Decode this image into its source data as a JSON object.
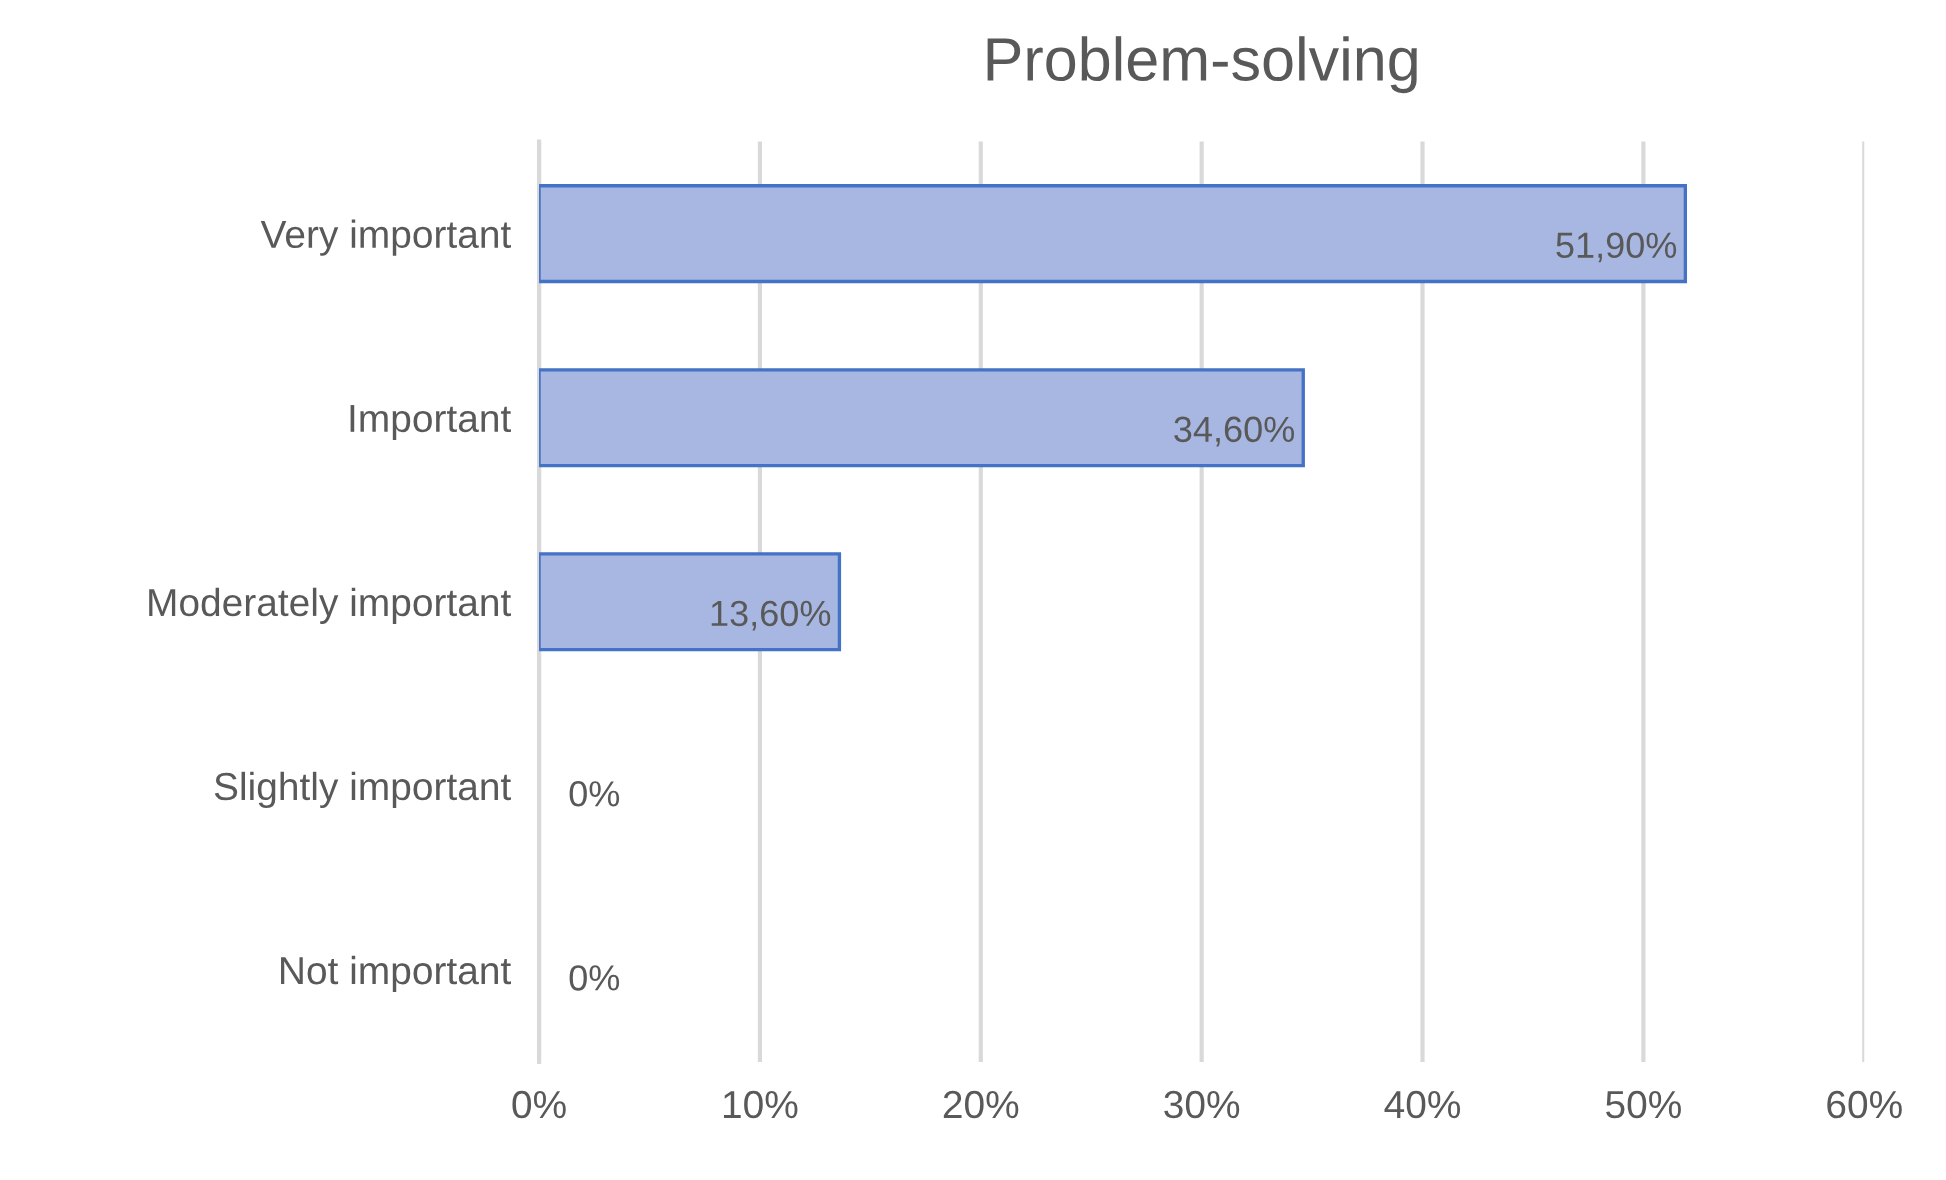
{
  "chart_data": {
    "type": "bar",
    "orientation": "horizontal",
    "title": "Problem-solving",
    "categories": [
      "Very important",
      "Important",
      "Moderately important",
      "Slightly important",
      "Not important"
    ],
    "values": [
      51.9,
      34.6,
      13.6,
      0,
      0
    ],
    "value_labels": [
      "51,90%",
      "34,60%",
      "13,60%",
      "0%",
      "0%"
    ],
    "color": "#a7b7e2",
    "xlim": [
      0,
      60
    ],
    "xticks": [
      {
        "value": 0,
        "label": "0%"
      },
      {
        "value": 10,
        "label": "10%"
      },
      {
        "value": 20,
        "label": "20%"
      },
      {
        "value": 30,
        "label": "30%"
      },
      {
        "value": 40,
        "label": "40%"
      },
      {
        "value": 50,
        "label": "50%"
      },
      {
        "value": 60,
        "label": "60%"
      }
    ],
    "grid": "x",
    "legend": false
  }
}
